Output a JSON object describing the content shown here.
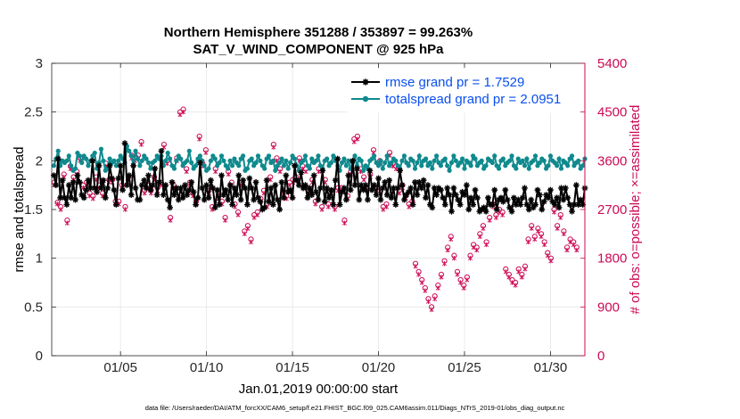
{
  "chart_data": {
    "type": "line",
    "title_line1": "Northern Hemisphere 351288 / 353897 = 99.263%",
    "title_line2": "SAT_V_WIND_COMPONENT @ 925 hPa",
    "xlabel": "Jan.01,2019 00:00:00 start",
    "ylabel_left": "rmse and totalspread",
    "ylabel_right": "# of obs: o=possible; ×=assimilated",
    "footnote": "data file: /Users/raeder/DAI/ATM_forcXX/CAM6_setup/f.e21.FHIST_BGC.f09_025.CAM6assim.011/Diags_NTrS_2019-01/obs_diag_output.nc",
    "xlim": [
      1,
      32
    ],
    "x_ticks": [
      5,
      10,
      15,
      20,
      25,
      30
    ],
    "x_tick_labels": [
      "01/05",
      "01/10",
      "01/15",
      "01/20",
      "01/25",
      "01/30"
    ],
    "ylim_left": [
      0,
      3
    ],
    "y_ticks_left": [
      "0",
      "0.5",
      "1",
      "1.5",
      "2",
      "2.5",
      "3"
    ],
    "ylim_right": [
      0,
      5400
    ],
    "y_ticks_right": [
      "0",
      "900",
      "1800",
      "2700",
      "3600",
      "4500",
      "5400"
    ],
    "grid": true,
    "x_start": 1.125,
    "x_step": 0.25,
    "series": [
      {
        "name": "rmse grand pr = 1.7529",
        "color": "#000000",
        "marker": "asterisk",
        "values": [
          1.85,
          1.75,
          2.02,
          1.62,
          1.8,
          1.62,
          1.55,
          1.75,
          1.62,
          1.78,
          1.6,
          1.85,
          1.78,
          1.65,
          1.62,
          1.7,
          1.8,
          1.72,
          2.0,
          1.72,
          1.68,
          1.95,
          1.72,
          1.8,
          1.62,
          1.72,
          1.95,
          1.82,
          1.7,
          1.55,
          1.82,
          1.95,
          1.7,
          2.18,
          1.75,
          1.85,
          1.65,
          1.95,
          1.72,
          1.6,
          1.6,
          1.75,
          1.8,
          1.72,
          1.85,
          1.7,
          1.75,
          1.92,
          1.65,
          1.78,
          2.1,
          1.65,
          1.75,
          1.6,
          1.52,
          1.78,
          1.65,
          1.72,
          1.6,
          1.72,
          1.62,
          1.75,
          1.65,
          1.7,
          1.78,
          1.68,
          1.55,
          1.62,
          1.98,
          1.72,
          1.6,
          1.75,
          1.62,
          1.8,
          1.72,
          1.52,
          1.7,
          1.55,
          1.85,
          1.65,
          1.7,
          1.6,
          1.75,
          1.55,
          1.72,
          1.65,
          1.85,
          1.6,
          1.8,
          1.72,
          1.55,
          1.82,
          1.72,
          1.6,
          1.78,
          1.62,
          1.58,
          1.5,
          1.52,
          1.8,
          1.58,
          1.72,
          1.55,
          1.75,
          1.6,
          1.5,
          1.78,
          1.62,
          1.85,
          1.68,
          1.7,
          1.62,
          1.95,
          1.8,
          1.75,
          1.88,
          1.72,
          1.75,
          1.62,
          1.72,
          1.65,
          1.85,
          1.68,
          1.6,
          1.72,
          1.9,
          1.58,
          1.72,
          1.62,
          1.7,
          1.55,
          1.8,
          2.02,
          1.55,
          1.68,
          1.72,
          1.6,
          1.85,
          1.7,
          2.0,
          1.75,
          1.92,
          1.6,
          1.75,
          1.7,
          1.75,
          1.6,
          1.9,
          1.7,
          1.75,
          1.65,
          1.82,
          1.6,
          1.72,
          1.78,
          1.65,
          1.8,
          1.62,
          1.72,
          1.55,
          1.72,
          1.9,
          1.75,
          1.6,
          1.65,
          1.68,
          1.72,
          1.55,
          1.78,
          1.65,
          1.78,
          1.72,
          1.8,
          1.62,
          1.75,
          1.55,
          1.52,
          1.72,
          1.65,
          1.72,
          1.7,
          1.62,
          1.55,
          1.72,
          1.65,
          1.48,
          1.72,
          1.65,
          1.6,
          1.55,
          1.68,
          1.65,
          1.75,
          1.5,
          1.62,
          1.55,
          1.7,
          1.62,
          1.48,
          1.5,
          1.52,
          1.48,
          1.62,
          1.55,
          1.55,
          1.7,
          1.5,
          1.6,
          1.62,
          1.58,
          1.7,
          1.6,
          1.52,
          1.48,
          1.62,
          1.55,
          1.6,
          1.55,
          1.62,
          1.72,
          1.55,
          1.5,
          1.6,
          1.52,
          1.55,
          1.7,
          1.65,
          1.5,
          1.58,
          1.65,
          1.62,
          1.7,
          1.58,
          1.55,
          1.62,
          1.52,
          1.72,
          1.6,
          1.72,
          1.62,
          1.55,
          1.48,
          1.55,
          1.75,
          1.55,
          1.6,
          1.55,
          1.72,
          1.55,
          1.58,
          1.72,
          1.62,
          1.48,
          1.7,
          1.55,
          1.72,
          1.52,
          1.55,
          1.48,
          1.5,
          1.62,
          1.6,
          1.48,
          1.5,
          1.55,
          1.6,
          1.52,
          1.48,
          1.55,
          1.62,
          1.5,
          1.72,
          1.58,
          1.48,
          1.5,
          1.58,
          1.62,
          1.55,
          1.5,
          1.62,
          1.6,
          1.52,
          1.55,
          1.62,
          1.48,
          1.55,
          1.72,
          1.52,
          1.48,
          1.58,
          1.62,
          1.55,
          1.6,
          1.5,
          1.52,
          1.6,
          1.62,
          1.55,
          1.48,
          1.52,
          1.65,
          1.58,
          1.5,
          1.62,
          1.52,
          1.48,
          1.6,
          1.55,
          1.55,
          1.62,
          1.5,
          1.58,
          1.48,
          1.62,
          1.55,
          1.6,
          1.5,
          1.55,
          1.52,
          1.62,
          1.48,
          1.55,
          1.6,
          1.5,
          1.62,
          1.55,
          1.5,
          1.48,
          1.6,
          1.55,
          1.52,
          1.6,
          1.55,
          1.5,
          1.62,
          1.55,
          1.48,
          1.58,
          1.62,
          1.5,
          1.52,
          1.6,
          1.55,
          1.48,
          1.6,
          1.62,
          1.5,
          1.55,
          1.52,
          1.62,
          1.48,
          1.55,
          1.6,
          1.5,
          1.58,
          1.55,
          1.62,
          1.5,
          1.48,
          1.6,
          1.55,
          1.52,
          1.6,
          1.55,
          1.5,
          1.62,
          1.48,
          1.55,
          1.6,
          1.52,
          1.55,
          1.48
        ]
      },
      {
        "name": "totalspread grand pr = 2.0951",
        "color": "#0f8a8e",
        "marker": "dot",
        "values": [
          1.95,
          2.02,
          2.1,
          1.95,
          2.0,
          1.98,
          2.0,
          2.05,
          1.95,
          1.9,
          1.92,
          2.08,
          2.05,
          1.98,
          2.05,
          2.02,
          1.95,
          2.0,
          2.05,
          2.08,
          1.92,
          1.98,
          2.12,
          2.0,
          1.9,
          1.92,
          2.02,
          1.98,
          2.0,
          1.95,
          2.0,
          2.05,
          2.02,
          1.98,
          2.15,
          2.1,
          2.05,
          1.95,
          2.1,
          2.02,
          1.95,
          2.0,
          2.05,
          2.02,
          1.98,
          1.92,
          1.98,
          2.0,
          2.05,
          2.02,
          2.05,
          1.95,
          2.0,
          2.08,
          2.02,
          1.95,
          1.92,
          2.0,
          2.05,
          2.02,
          1.95,
          1.98,
          2.0,
          2.1,
          1.98,
          1.92,
          1.95,
          2.02,
          2.05,
          2.0,
          1.95,
          1.9,
          1.92,
          2.0,
          2.05,
          2.02,
          1.95,
          1.98,
          2.05,
          2.0,
          1.95,
          1.92,
          2.0,
          1.95,
          2.02,
          1.98,
          1.95,
          2.02,
          2.05,
          1.9,
          1.92,
          2.0,
          2.02,
          1.95,
          1.98,
          2.05,
          2.0,
          1.95,
          1.92,
          2.02,
          2.05,
          1.98,
          2.0,
          1.9,
          1.95,
          1.98,
          2.02,
          1.95,
          2.0,
          1.92,
          1.98,
          2.05,
          2.02,
          1.95,
          1.9,
          1.98,
          2.0,
          2.05,
          1.95,
          1.92,
          2.02,
          1.98,
          2.0,
          2.05,
          1.95,
          1.92,
          2.0,
          2.02,
          1.95,
          1.98,
          2.05,
          2.0,
          1.95,
          1.9,
          1.98,
          2.02,
          1.95,
          2.0,
          1.92,
          1.98,
          2.05,
          1.95,
          2.02,
          2.0,
          1.9,
          1.95,
          1.92,
          2.0,
          2.02,
          2.05,
          1.98,
          1.95,
          2.0,
          1.92,
          1.98,
          2.05,
          1.95,
          1.98,
          2.02,
          2.0,
          1.95,
          1.92,
          2.0,
          2.05,
          1.98,
          1.95,
          2.02,
          2.0,
          1.92,
          1.98,
          2.05,
          1.95,
          2.0,
          2.02,
          1.95,
          1.98,
          1.92,
          2.0,
          2.05,
          1.98,
          1.95,
          2.0,
          2.02,
          1.95,
          1.9,
          1.98,
          2.05,
          2.0,
          1.95,
          1.98,
          2.02,
          1.92,
          2.0,
          1.98,
          1.95,
          2.05,
          2.02,
          1.95,
          1.98,
          2.0,
          1.92,
          1.95,
          2.02,
          2.0,
          1.98,
          2.05,
          1.95,
          1.92,
          2.0,
          2.02,
          1.95,
          1.98,
          2.0,
          2.05,
          1.95,
          1.92,
          2.02,
          1.98,
          2.0,
          1.95,
          2.02,
          1.92,
          1.98,
          2.0,
          2.05,
          1.95,
          1.98,
          2.02,
          2.0,
          1.92,
          1.95,
          2.05,
          2.0,
          1.98,
          1.95,
          2.02,
          1.92,
          2.0,
          1.98,
          1.95,
          2.02,
          2.05,
          1.95,
          1.98,
          2.0,
          1.92,
          1.95,
          2.02,
          2.0,
          1.98,
          2.05,
          1.95,
          1.92,
          2.0,
          2.02,
          1.95,
          1.98,
          2.0,
          2.05,
          1.95,
          1.92,
          2.02,
          1.98,
          2.0,
          1.95,
          2.02,
          1.92,
          1.98,
          2.0,
          2.05,
          1.95,
          1.98,
          2.02,
          2.0,
          1.92,
          1.95,
          2.05,
          2.0,
          1.98,
          1.95,
          2.02,
          1.92,
          2.0,
          1.98,
          1.95,
          2.02,
          2.05,
          1.95,
          1.98,
          2.0,
          1.92,
          1.95,
          2.02,
          2.0,
          1.98,
          2.05,
          1.95,
          1.92,
          2.0,
          2.02,
          1.95,
          1.98,
          2.0,
          2.05,
          1.95,
          1.92,
          2.02,
          1.98,
          2.0,
          1.95,
          2.02,
          1.92,
          1.98,
          2.0,
          2.05,
          1.95,
          1.98,
          2.02,
          2.0,
          1.92,
          1.95,
          2.05,
          2.0,
          1.98,
          1.95,
          2.02,
          1.92,
          2.0,
          1.98,
          1.95,
          2.02,
          2.05,
          1.95,
          1.98,
          2.0,
          1.92,
          1.95,
          2.02,
          2.0,
          1.98,
          2.05,
          1.95,
          1.92,
          2.0,
          2.02,
          1.95,
          1.98,
          2.0,
          2.05,
          1.95,
          1.92,
          2.02,
          1.98,
          2.0,
          1.95,
          2.02,
          1.92,
          1.98,
          2.0,
          2.05,
          1.95,
          1.98,
          2.02,
          2.0,
          1.92,
          1.95,
          2.05,
          2.0,
          1.98,
          1.95,
          2.02,
          1.92,
          2.0,
          1.98,
          1.95,
          2.02,
          2.05,
          1.95,
          1.98,
          2.0,
          1.92,
          1.95,
          2.02,
          2.0,
          1.98,
          2.05,
          1.95,
          1.92,
          2.0,
          2.02,
          1.95
        ]
      }
    ],
    "obs_possible": {
      "name": "# of obs possible",
      "color": "#cc0a54",
      "values": [
        3200,
        2830,
        2750,
        3350,
        2500,
        3500,
        3300,
        3400,
        3650,
        3150,
        3200,
        3000,
        2950,
        3300,
        3150,
        3000,
        3550,
        3250,
        3250,
        2850,
        2850,
        3150,
        2750,
        3300,
        3700,
        3650,
        3700,
        3950,
        3050,
        3150,
        3050,
        3300,
        3100,
        3200,
        3900,
        3600,
        2550,
        3150,
        3650,
        4500,
        4550,
        3450,
        3200,
        3000,
        2850,
        4050,
        3550,
        3800,
        3050,
        2750,
        3450,
        2950,
        2850,
        2550,
        3400,
        3200,
        2800,
        2650,
        3200,
        2300,
        2400,
        2150,
        2600,
        2650,
        2900,
        3050,
        2800,
        3300,
        3900,
        3650,
        3450,
        3050,
        2950,
        3200,
        3250,
        3300,
        3650,
        3500,
        3450,
        3050,
        3250,
        2850,
        3450,
        2750,
        3250,
        2800,
        3050,
        2750,
        3100,
        3100,
        2500,
        2950,
        3400,
        4000,
        4050,
        3450,
        3300,
        3100,
        3350,
        3800,
        3100,
        3600,
        2750,
        2800,
        3750,
        3550,
        3500,
        3050,
        3150,
        2950,
        2800,
        2850,
        1700,
        1550,
        1400,
        1250,
        1050,
        900,
        1100,
        1300,
        1500,
        1750,
        2000,
        2200,
        1850,
        1550,
        1400,
        1300,
        1450,
        1850,
        2050,
        2000,
        2250,
        2400,
        2100,
        2550,
        2800,
        2600,
        2700,
        2650,
        1600,
        1500,
        1400,
        1350,
        1600,
        1500,
        1650,
        2150,
        2400,
        2200,
        2350,
        2250,
        2100,
        1900,
        1800,
        2700,
        2400,
        2600,
        2300,
        2000,
        2150,
        2100,
        2000
      ]
    },
    "obs_assimilated": {
      "name": "# of obs assimilated",
      "color": "#cc0a54",
      "values": [
        3150,
        2800,
        2700,
        3300,
        2450,
        3450,
        3250,
        3350,
        3600,
        3100,
        3150,
        2950,
        2900,
        3250,
        3100,
        2950,
        3500,
        3200,
        3200,
        2800,
        2800,
        3100,
        2700,
        3250,
        3650,
        3600,
        3650,
        3900,
        3000,
        3100,
        3000,
        3250,
        3050,
        3150,
        3850,
        3550,
        2500,
        3100,
        3600,
        4450,
        4500,
        3400,
        3150,
        2950,
        2800,
        4000,
        3500,
        3750,
        3000,
        2700,
        3400,
        2900,
        2800,
        2500,
        3350,
        3150,
        2750,
        2600,
        3150,
        2250,
        2350,
        2100,
        2550,
        2600,
        2850,
        3000,
        2750,
        3250,
        3850,
        3600,
        3400,
        3000,
        2900,
        3150,
        3200,
        3250,
        3600,
        3450,
        3400,
        3000,
        3200,
        2800,
        3400,
        2700,
        3200,
        2750,
        3000,
        2700,
        3050,
        3050,
        2450,
        2900,
        3350,
        3950,
        4000,
        3400,
        3250,
        3050,
        3300,
        3750,
        3050,
        3550,
        2700,
        2750,
        3700,
        3500,
        3450,
        3000,
        3100,
        2900,
        2750,
        2800,
        1650,
        1500,
        1350,
        1200,
        1000,
        850,
        1050,
        1250,
        1450,
        1700,
        1950,
        2150,
        1800,
        1500,
        1350,
        1250,
        1400,
        1800,
        2000,
        1950,
        2200,
        2350,
        2050,
        2500,
        2750,
        2550,
        2650,
        2600,
        1550,
        1450,
        1350,
        1300,
        1550,
        1450,
        1600,
        2100,
        2350,
        2150,
        2300,
        2200,
        2050,
        1850,
        1750,
        2650,
        2350,
        2550,
        2250,
        1950,
        2100,
        2050,
        1950
      ]
    }
  }
}
